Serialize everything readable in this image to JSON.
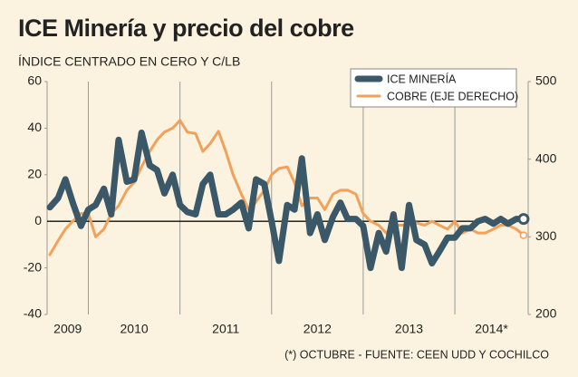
{
  "chart_data": {
    "type": "line",
    "title": "ICE Minería y precio del cobre",
    "subtitle": "ÍNDICE CENTRADO EN CERO Y C/LB",
    "footnote": "(*) OCTUBRE - FUENTE: CEEN UDD Y COCHILCO",
    "year_labels": [
      "2009",
      "2010",
      "2011",
      "2012",
      "2013",
      "2014*"
    ],
    "x": [
      2009.58,
      2009.67,
      2009.75,
      2009.83,
      2009.92,
      2010,
      2010.08,
      2010.17,
      2010.25,
      2010.33,
      2010.42,
      2010.5,
      2010.58,
      2010.67,
      2010.75,
      2010.83,
      2010.92,
      2011,
      2011.08,
      2011.17,
      2011.25,
      2011.33,
      2011.42,
      2011.5,
      2011.58,
      2011.67,
      2011.75,
      2011.83,
      2011.92,
      2012,
      2012.08,
      2012.17,
      2012.25,
      2012.33,
      2012.42,
      2012.5,
      2012.58,
      2012.67,
      2012.75,
      2012.83,
      2012.92,
      2013,
      2013.08,
      2013.17,
      2013.25,
      2013.33,
      2013.42,
      2013.5,
      2013.58,
      2013.67,
      2013.75,
      2013.83,
      2013.92,
      2014,
      2014.08,
      2014.17,
      2014.25,
      2014.33,
      2014.42,
      2014.5,
      2014.58,
      2014.67,
      2014.75
    ],
    "xlim": [
      2009.55,
      2014.8
    ],
    "xticks": [
      2010,
      2011,
      2012,
      2013,
      2014
    ],
    "ylim": [
      -40,
      60
    ],
    "yticks": [
      -40,
      -20,
      0,
      20,
      40,
      60
    ],
    "y2lim": [
      200,
      500
    ],
    "y2ticks": [
      200,
      300,
      400,
      500
    ],
    "legend": "top-right",
    "series": [
      {
        "name": "ICE MINERÍA",
        "color": "#3b5868",
        "values": [
          6,
          10,
          18,
          8,
          -2,
          5,
          7,
          14,
          3,
          35,
          17,
          18,
          38,
          24,
          22,
          12,
          20,
          7,
          4,
          3,
          16,
          20,
          3,
          3,
          5,
          8,
          -3,
          18,
          16,
          0,
          -17,
          7,
          5,
          27,
          -5,
          3,
          -8,
          2,
          8,
          1,
          1,
          -2,
          -20,
          -5,
          -13,
          3,
          -20,
          7,
          -8,
          -10,
          -18,
          -13,
          -7,
          -7,
          -3,
          -3,
          0,
          1,
          -1,
          1,
          -1,
          1,
          1
        ]
      },
      {
        "name": "COBRE (EJE DERECHO)",
        "color": "#f3a15a",
        "axis": "y2",
        "values": [
          277,
          295,
          310,
          320,
          330,
          330,
          300,
          310,
          330,
          340,
          360,
          370,
          390,
          410,
          425,
          435,
          440,
          450,
          435,
          433,
          410,
          420,
          436,
          410,
          380,
          355,
          335,
          345,
          360,
          380,
          388,
          390,
          370,
          340,
          350,
          350,
          335,
          355,
          360,
          360,
          355,
          330,
          320,
          315,
          305,
          315,
          315,
          315,
          318,
          315,
          320,
          315,
          310,
          320,
          305,
          310,
          305,
          305,
          310,
          315,
          315,
          310,
          302
        ]
      }
    ]
  }
}
